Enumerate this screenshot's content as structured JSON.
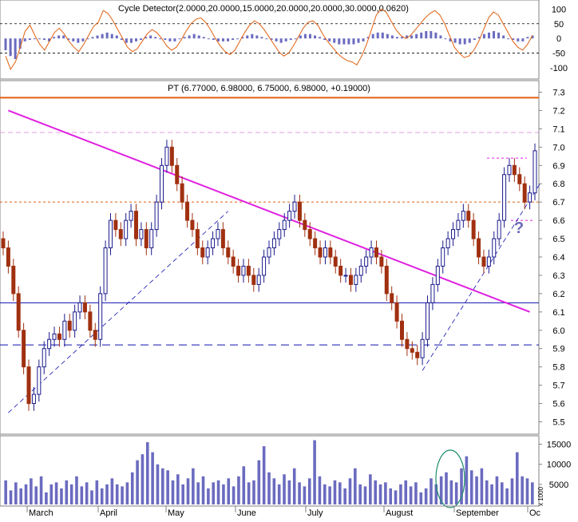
{
  "indicator_panel": {
    "label": "Cycle Detector(2.0000,20.0000,15.0000,20.0000,20.0000,30.0000,0.0620)",
    "y_ticks": [
      "100",
      "50",
      "0",
      "-50",
      "-100"
    ]
  },
  "price_panel": {
    "label": "PT (6.77000, 6.98000, 6.75000, 6.98000, +0.19000)",
    "annotation": "?",
    "y_ticks": [
      "7.3",
      "7.2",
      "7.1",
      "7.0",
      "6.9",
      "6.8",
      "6.7",
      "6.6",
      "6.5",
      "6.4",
      "6.3",
      "6.2",
      "6.1",
      "6.0",
      "5.9",
      "5.8",
      "5.7",
      "5.6",
      "5.5"
    ]
  },
  "volume_panel": {
    "y_ticks": [
      "15000",
      "10000",
      "5000"
    ],
    "unit": "x 1000"
  },
  "x_labels": [
    "March",
    "April",
    "May",
    "June",
    "July",
    "August",
    "September",
    "Oc"
  ],
  "colors": {
    "up_candle": "#1a1a8c",
    "down_candle": "#a03010",
    "trend_magenta": "#e020e0",
    "support_blue": "#1010b0",
    "orange": "#e06010",
    "volume": "#6b6bc0",
    "cycle_line": "#e06010",
    "circle": "#1a8a6a"
  },
  "chart_data": [
    {
      "type": "line",
      "title": "Cycle Detector(2.0000,20.0000,15.0000,20.0000,20.0000,30.0000,0.0620)",
      "ylim": [
        -130,
        120
      ],
      "reference_levels": [
        50,
        -50
      ],
      "series": [
        {
          "values": [
            -60,
            -105,
            -80,
            -30,
            25,
            45,
            10,
            -20,
            -40,
            -10,
            20,
            35,
            15,
            -10,
            -30,
            -45,
            -20,
            10,
            40,
            55,
            95,
            85,
            60,
            30,
            0,
            -30,
            -45,
            -35,
            -10,
            15,
            30,
            20,
            0,
            -25,
            -40,
            -30,
            -5,
            25,
            50,
            65,
            70,
            55,
            30,
            0,
            -25,
            -45,
            -55,
            -40,
            -10,
            20,
            45,
            60,
            50,
            30,
            5,
            -20,
            -45,
            -60,
            -50,
            -25,
            5,
            35,
            55,
            60,
            45,
            15,
            -10,
            -30,
            -50,
            -65,
            -75,
            -80,
            -90,
            -60,
            -20,
            30,
            80,
            100,
            90,
            60,
            30,
            10,
            0,
            10,
            30,
            50,
            70,
            85,
            95,
            80,
            50,
            10,
            -30,
            -50,
            -65,
            -60,
            -40,
            -10,
            30,
            70,
            90,
            80,
            50,
            20,
            -10,
            -30,
            -40,
            -20,
            10
          ]
        },
        {
          "values": [
            -40,
            -60,
            -70,
            -35,
            -10,
            -5,
            0,
            0,
            -5,
            -10,
            5,
            10,
            10,
            -5,
            -10,
            -15,
            -10,
            0,
            5,
            10,
            15,
            20,
            15,
            10,
            -5,
            -15,
            -15,
            -10,
            -5,
            5,
            10,
            5,
            0,
            -5,
            -10,
            -10,
            0,
            5,
            10,
            15,
            10,
            5,
            0,
            -5,
            -10,
            -10,
            -10,
            -5,
            0,
            5,
            10,
            15,
            10,
            5,
            0,
            -5,
            -10,
            -15,
            -10,
            -5,
            0,
            10,
            15,
            15,
            10,
            5,
            -5,
            -10,
            -15,
            -20,
            -20,
            -20,
            -20,
            -15,
            -10,
            5,
            15,
            20,
            20,
            15,
            10,
            5,
            5,
            10,
            10,
            15,
            20,
            25,
            25,
            20,
            10,
            0,
            -10,
            -15,
            -20,
            -20,
            -15,
            -5,
            5,
            15,
            20,
            25,
            20,
            10,
            0,
            -5,
            -10,
            -10,
            5,
            10
          ]
        }
      ]
    },
    {
      "type": "candlestick",
      "title": "PT (6.77000, 6.98000, 6.75000, 6.98000, +0.19000)",
      "ylim": [
        5.45,
        7.35
      ],
      "close": [
        6.45,
        6.35,
        6.2,
        6.0,
        5.8,
        5.6,
        5.65,
        5.8,
        5.9,
        5.95,
        5.98,
        5.95,
        6.05,
        6.0,
        6.1,
        6.15,
        6.1,
        6.0,
        5.95,
        6.2,
        6.45,
        6.6,
        6.55,
        6.5,
        6.6,
        6.65,
        6.5,
        6.55,
        6.45,
        6.55,
        6.7,
        6.9,
        7.0,
        6.9,
        6.8,
        6.7,
        6.6,
        6.55,
        6.45,
        6.4,
        6.45,
        6.5,
        6.55,
        6.45,
        6.4,
        6.35,
        6.3,
        6.35,
        6.3,
        6.25,
        6.3,
        6.4,
        6.45,
        6.5,
        6.55,
        6.6,
        6.65,
        6.7,
        6.6,
        6.55,
        6.5,
        6.45,
        6.4,
        6.45,
        6.4,
        6.35,
        6.3,
        6.3,
        6.25,
        6.3,
        6.35,
        6.4,
        6.45,
        6.4,
        6.35,
        6.2,
        6.15,
        6.05,
        5.95,
        5.9,
        5.88,
        5.85,
        5.95,
        6.15,
        6.25,
        6.35,
        6.45,
        6.5,
        6.55,
        6.6,
        6.65,
        6.6,
        6.5,
        6.4,
        6.35,
        6.4,
        6.5,
        6.6,
        6.85,
        6.9,
        6.85,
        6.8,
        6.7,
        6.75,
        6.98
      ],
      "reference_levels": [
        7.27,
        7.08,
        6.94,
        6.7,
        6.6,
        6.15,
        5.92
      ],
      "trendlines": [
        {
          "from": [
            1,
            7.2
          ],
          "to": [
            103,
            6.1
          ]
        },
        {
          "from": [
            1,
            5.55
          ],
          "to": [
            44,
            6.65
          ]
        },
        {
          "from": [
            82,
            5.78
          ],
          "to": [
            105,
            6.8
          ]
        }
      ]
    },
    {
      "type": "bar",
      "title": "",
      "ylabel": "x 1000",
      "ylim": [
        0,
        16500
      ],
      "values": [
        6000,
        3500,
        5500,
        4000,
        5000,
        6500,
        4500,
        7000,
        3000,
        5000,
        5500,
        4000,
        6000,
        5000,
        7000,
        4500,
        5500,
        3500,
        6000,
        4000,
        5000,
        6500,
        5000,
        4500,
        5500,
        8000,
        11000,
        12500,
        15500,
        13000,
        10000,
        9000,
        8500,
        6000,
        7500,
        5000,
        6500,
        9000,
        5500,
        7000,
        4000,
        5500,
        6000,
        5000,
        6500,
        4500,
        7000,
        9500,
        5500,
        6000,
        11000,
        14500,
        8000,
        6500,
        5000,
        7500,
        6000,
        9000,
        5500,
        4500,
        6500,
        16000,
        7000,
        5000,
        4500,
        6000,
        5500,
        4000,
        6500,
        9000,
        5000,
        4500,
        7500,
        6000,
        5000,
        5500,
        4000,
        3500,
        5000,
        6000,
        4500,
        5500,
        3000,
        4000,
        6500,
        5000,
        7000,
        8000,
        6000,
        5500,
        9000,
        12000,
        8500,
        7000,
        9000,
        6000,
        5000,
        7000,
        5500,
        4000,
        6500,
        13000,
        7000,
        6500,
        5500
      ]
    }
  ]
}
